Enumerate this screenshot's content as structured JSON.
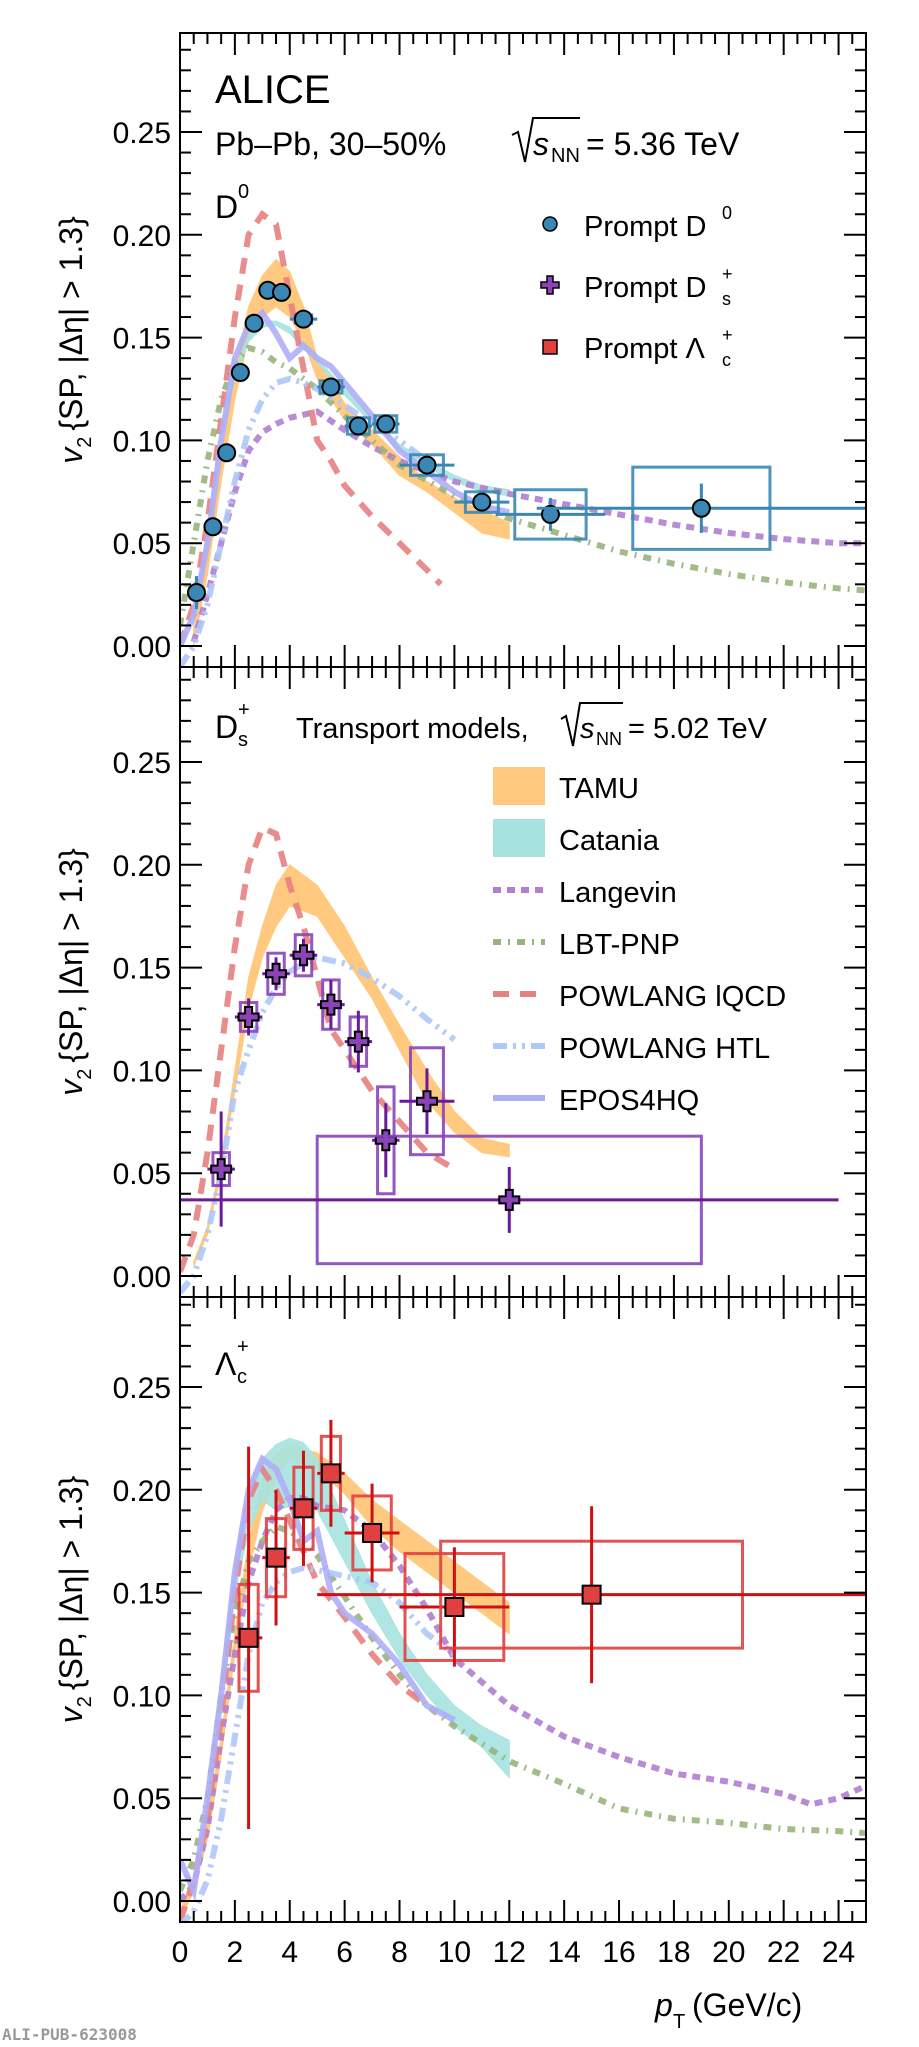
{
  "chart_data": [
    {
      "type": "scatter",
      "panel_label": "D0",
      "experiment": "ALICE",
      "system": "Pb–Pb, 30–50%",
      "energy_label": "= 5.36 TeV",
      "ylabel": "v2 {SP, |Δη| > 1.3}",
      "xlabel": "pT (GeV/c)",
      "xlim": [
        0,
        25
      ],
      "ylim": [
        -0.01,
        0.298
      ],
      "yticks": [
        "0.00",
        "0.05",
        "0.10",
        "0.15",
        "0.20",
        "0.25"
      ],
      "legend": [
        {
          "label": "Prompt D",
          "sup": "0",
          "sub": "",
          "marker": "circle",
          "color": "#3a87b5"
        },
        {
          "label": "Prompt D",
          "sup": "+",
          "sub": "s",
          "marker": "cross",
          "color": "#8a44b8"
        },
        {
          "label": "Prompt Λ",
          "sup": "+",
          "sub": "c",
          "marker": "square",
          "color": "#e04040"
        }
      ],
      "series": [
        {
          "name": "Prompt D0",
          "color": "#3a87b5",
          "marker": "circle",
          "x": [
            0.6,
            1.2,
            1.7,
            2.2,
            2.7,
            3.2,
            3.7,
            4.5,
            5.5,
            6.5,
            7.5,
            9.0,
            11.0,
            13.5,
            19.0
          ],
          "y": [
            0.026,
            0.058,
            0.094,
            0.133,
            0.157,
            0.173,
            0.172,
            0.159,
            0.126,
            0.107,
            0.108,
            0.088,
            0.07,
            0.064,
            0.067
          ],
          "xerr": [
            0,
            0,
            0,
            0,
            0,
            0,
            0,
            0.5,
            0.5,
            0.5,
            0.5,
            1.0,
            1.0,
            2.0,
            6.0
          ],
          "yerr": [
            0.008,
            0.004,
            0.003,
            0.003,
            0.003,
            0.003,
            0.003,
            0.003,
            0.003,
            0.003,
            0.003,
            0.004,
            0.005,
            0.008,
            0.012
          ],
          "sys_dx": [
            0.2,
            0.2,
            0.2,
            0.2,
            0.2,
            0.2,
            0.2,
            0.3,
            0.4,
            0.4,
            0.4,
            0.6,
            0.6,
            1.3,
            2.5
          ],
          "sys_dy": [
            0.003,
            0.002,
            0.002,
            0.002,
            0.002,
            0.002,
            0.002,
            0.002,
            0.003,
            0.004,
            0.004,
            0.005,
            0.005,
            0.012,
            0.02
          ]
        }
      ]
    },
    {
      "type": "scatter",
      "panel_label": "Ds+",
      "models_title": "Transport models,",
      "models_energy": "= 5.02 TeV",
      "ylabel": "v2 {SP, |Δη| > 1.3}",
      "xlim": [
        0,
        25
      ],
      "ylim": [
        -0.01,
        0.296
      ],
      "yticks": [
        "0.00",
        "0.05",
        "0.10",
        "0.15",
        "0.20",
        "0.25"
      ],
      "legend": [
        {
          "label": "TAMU",
          "style": "band",
          "color": "#ffc980"
        },
        {
          "label": "Catania",
          "style": "band",
          "color": "#a6e3e0"
        },
        {
          "label": "Langevin",
          "style": "dotted",
          "color": "#b07fd0"
        },
        {
          "label": "LBT-PNP",
          "style": "dashdot",
          "color": "#98b47c"
        },
        {
          "label": "POWLANG lQCD",
          "style": "dashed",
          "color": "#e78080"
        },
        {
          "label": "POWLANG HTL",
          "style": "dashdotdot",
          "color": "#aec8f8"
        },
        {
          "label": "EPOS4HQ",
          "style": "solid",
          "color": "#aeaef7"
        }
      ],
      "series": [
        {
          "name": "Prompt Ds+",
          "color": "#6a1a9a",
          "marker": "cross",
          "x": [
            1.5,
            2.5,
            3.5,
            4.5,
            5.5,
            6.5,
            7.5,
            9.0,
            12.0
          ],
          "y": [
            0.052,
            0.126,
            0.147,
            0.156,
            0.132,
            0.114,
            0.066,
            0.085,
            0.037
          ],
          "xerr": [
            0.5,
            0.5,
            0.5,
            0.5,
            0.5,
            0.5,
            0.5,
            1.0,
            12.0
          ],
          "yerr": [
            0.028,
            0.009,
            0.008,
            0.008,
            0.012,
            0.015,
            0.018,
            0.016,
            0.016
          ],
          "sys_dx": [
            0.3,
            0.3,
            0.3,
            0.3,
            0.3,
            0.3,
            0.3,
            0.6,
            7.0
          ],
          "sys_dy": [
            0.008,
            0.007,
            0.01,
            0.01,
            0.012,
            0.012,
            0.026,
            0.026,
            0.031
          ]
        }
      ]
    },
    {
      "type": "scatter",
      "panel_label": "Λc+",
      "ylabel": "v2 {SP, |Δη| > 1.3}",
      "xlabel": "pT (GeV/c)",
      "xlim": [
        0,
        25
      ],
      "ylim": [
        -0.01,
        0.296
      ],
      "yticks": [
        "0.00",
        "0.05",
        "0.10",
        "0.15",
        "0.20",
        "0.25"
      ],
      "xticks": [
        "0",
        "2",
        "4",
        "6",
        "8",
        "10",
        "12",
        "14",
        "16",
        "18",
        "20",
        "22",
        "24"
      ],
      "series": [
        {
          "name": "Prompt Λc+",
          "color": "#d01010",
          "marker": "square",
          "x": [
            2.5,
            3.5,
            4.5,
            5.5,
            7.0,
            10.0,
            15.0
          ],
          "y": [
            0.128,
            0.167,
            0.191,
            0.208,
            0.179,
            0.143,
            0.149
          ],
          "xerr": [
            0.5,
            0.5,
            0.5,
            0.5,
            1.0,
            2.0,
            10.0
          ],
          "yerr": [
            0.093,
            0.033,
            0.028,
            0.026,
            0.024,
            0.029,
            0.043
          ],
          "sys_dx": [
            0.35,
            0.35,
            0.35,
            0.35,
            0.7,
            1.8,
            5.5
          ],
          "sys_dy": [
            0.026,
            0.019,
            0.02,
            0.018,
            0.018,
            0.026,
            0.026
          ]
        }
      ]
    }
  ],
  "models": {
    "p1": {
      "TAMU": {
        "x": [
          0.5,
          1,
          1.5,
          2,
          2.5,
          3,
          3.5,
          4,
          4.5,
          5,
          6,
          7,
          8,
          9,
          10,
          11,
          12
        ],
        "lo": [
          0.0,
          0.035,
          0.08,
          0.12,
          0.15,
          0.16,
          0.165,
          0.16,
          0.148,
          0.13,
          0.11,
          0.098,
          0.083,
          0.075,
          0.065,
          0.055,
          0.052
        ],
        "hi": [
          0.015,
          0.05,
          0.09,
          0.135,
          0.165,
          0.18,
          0.188,
          0.182,
          0.165,
          0.14,
          0.118,
          0.105,
          0.092,
          0.08,
          0.072,
          0.066,
          0.06
        ]
      },
      "Catania": {
        "x": [
          0.5,
          1,
          1.5,
          2,
          2.5,
          3,
          3.5,
          4,
          5,
          6,
          7,
          8,
          9,
          10,
          11,
          12
        ],
        "lo": [
          0.01,
          0.05,
          0.1,
          0.13,
          0.148,
          0.155,
          0.156,
          0.152,
          0.138,
          0.122,
          0.108,
          0.095,
          0.087,
          0.08,
          0.075,
          0.073
        ],
        "hi": [
          0.015,
          0.056,
          0.104,
          0.134,
          0.151,
          0.158,
          0.158,
          0.155,
          0.14,
          0.125,
          0.111,
          0.098,
          0.09,
          0.083,
          0.078,
          0.076
        ]
      },
      "Langevin": {
        "x": [
          0.5,
          1,
          1.5,
          2,
          2.5,
          3,
          3.5,
          4,
          5,
          6,
          7,
          8,
          9,
          10,
          12,
          14,
          16,
          18,
          20,
          22,
          24,
          25
        ],
        "y": [
          0.002,
          0.025,
          0.05,
          0.075,
          0.095,
          0.104,
          0.108,
          0.111,
          0.114,
          0.105,
          0.097,
          0.09,
          0.085,
          0.08,
          0.074,
          0.069,
          0.064,
          0.059,
          0.055,
          0.052,
          0.05,
          0.05
        ]
      },
      "LBT-PNP": {
        "x": [
          0,
          0.5,
          1,
          1.5,
          2,
          2.5,
          3,
          3.5,
          4,
          5,
          6,
          7,
          8,
          10,
          12,
          14,
          16,
          18,
          20,
          22,
          24,
          25
        ],
        "y": [
          0.01,
          0.05,
          0.09,
          0.12,
          0.138,
          0.145,
          0.143,
          0.138,
          0.135,
          0.125,
          0.112,
          0.1,
          0.088,
          0.073,
          0.062,
          0.054,
          0.046,
          0.04,
          0.035,
          0.031,
          0.028,
          0.027
        ]
      },
      "POWLANG lQCD": {
        "x": [
          0,
          0.5,
          1,
          1.5,
          2,
          2.5,
          3,
          3.5,
          4,
          4.5,
          5,
          5.5,
          6,
          7,
          8,
          9,
          9.5
        ],
        "y": [
          0.0,
          0.02,
          0.06,
          0.11,
          0.16,
          0.2,
          0.21,
          0.205,
          0.17,
          0.135,
          0.1,
          0.09,
          0.078,
          0.063,
          0.05,
          0.037,
          0.03
        ]
      },
      "POWLANG HTL": {
        "x": [
          0,
          0.5,
          1,
          1.5,
          2,
          2.5,
          3,
          3.5,
          4,
          4.5,
          5,
          6,
          7,
          8,
          9
        ],
        "y": [
          -0.01,
          0.0,
          0.02,
          0.05,
          0.08,
          0.105,
          0.12,
          0.128,
          0.13,
          0.128,
          0.125,
          0.117,
          0.108,
          0.1,
          0.09
        ]
      },
      "EPOS4HQ": {
        "x": [
          0,
          0.5,
          1,
          1.5,
          2,
          2.5,
          3,
          3.5,
          4,
          4.5,
          5,
          5.5,
          6,
          7,
          8,
          9,
          10,
          11,
          12
        ],
        "y": [
          0.0,
          0.015,
          0.05,
          0.1,
          0.14,
          0.156,
          0.162,
          0.152,
          0.14,
          0.146,
          0.14,
          0.136,
          0.128,
          0.112,
          0.095,
          0.085,
          0.075,
          0.068,
          0.065
        ]
      }
    },
    "p2": {
      "TAMU": {
        "x": [
          0.5,
          1,
          1.5,
          2,
          2.5,
          3,
          3.5,
          4,
          5,
          6,
          7,
          8,
          9,
          10,
          11,
          12
        ],
        "lo": [
          0.005,
          0.02,
          0.05,
          0.09,
          0.13,
          0.155,
          0.17,
          0.18,
          0.175,
          0.155,
          0.135,
          0.11,
          0.085,
          0.07,
          0.06,
          0.058
        ],
        "hi": [
          0.007,
          0.024,
          0.056,
          0.1,
          0.145,
          0.17,
          0.19,
          0.2,
          0.19,
          0.17,
          0.145,
          0.122,
          0.1,
          0.08,
          0.067,
          0.064
        ]
      },
      "POWLANG lQCD": {
        "x": [
          0,
          0.5,
          1,
          1.5,
          2,
          2.5,
          3,
          3.5,
          4,
          4.5,
          5,
          5.5,
          6,
          7,
          8,
          9,
          10
        ],
        "y": [
          0.002,
          0.02,
          0.06,
          0.11,
          0.16,
          0.2,
          0.218,
          0.215,
          0.19,
          0.17,
          0.145,
          0.12,
          0.11,
          0.09,
          0.075,
          0.06,
          0.052
        ]
      },
      "POWLANG HTL": {
        "x": [
          0,
          0.5,
          1,
          1.5,
          2,
          2.5,
          3,
          3.5,
          4,
          4.5,
          5,
          6,
          7,
          8,
          9,
          10
        ],
        "y": [
          -0.008,
          0.0,
          0.02,
          0.05,
          0.09,
          0.11,
          0.128,
          0.14,
          0.148,
          0.152,
          0.155,
          0.152,
          0.145,
          0.136,
          0.125,
          0.115
        ]
      }
    },
    "p3": {
      "TAMU": {
        "x": [
          0,
          0.5,
          1,
          1.5,
          2,
          2.5,
          3,
          3.5,
          4,
          5,
          6,
          7,
          8,
          9,
          10,
          11,
          12
        ],
        "lo": [
          -0.01,
          0.005,
          0.03,
          0.07,
          0.12,
          0.16,
          0.19,
          0.205,
          0.215,
          0.21,
          0.198,
          0.182,
          0.17,
          0.16,
          0.15,
          0.14,
          0.13
        ],
        "hi": [
          -0.005,
          0.012,
          0.04,
          0.08,
          0.13,
          0.175,
          0.205,
          0.218,
          0.222,
          0.218,
          0.208,
          0.195,
          0.185,
          0.175,
          0.165,
          0.155,
          0.145
        ]
      },
      "Catania": {
        "x": [
          1,
          1.5,
          2,
          2.5,
          3,
          3.5,
          4,
          4.5,
          5,
          6,
          7,
          8,
          9,
          10,
          11,
          12
        ],
        "lo": [
          0.045,
          0.1,
          0.15,
          0.18,
          0.195,
          0.19,
          0.192,
          0.195,
          0.19,
          0.165,
          0.14,
          0.118,
          0.1,
          0.085,
          0.075,
          0.06
        ],
        "hi": [
          0.05,
          0.11,
          0.165,
          0.2,
          0.215,
          0.222,
          0.225,
          0.223,
          0.215,
          0.185,
          0.155,
          0.13,
          0.11,
          0.095,
          0.085,
          0.078
        ]
      },
      "Langevin": {
        "x": [
          0,
          0.5,
          1,
          1.5,
          2,
          2.5,
          3,
          3.5,
          4,
          4.5,
          5,
          6,
          7,
          8,
          9,
          10,
          12,
          14,
          16,
          18,
          20,
          22,
          23,
          24,
          25
        ],
        "y": [
          0.0,
          0.008,
          0.035,
          0.08,
          0.12,
          0.155,
          0.175,
          0.19,
          0.196,
          0.196,
          0.192,
          0.19,
          0.18,
          0.163,
          0.142,
          0.118,
          0.095,
          0.08,
          0.07,
          0.062,
          0.058,
          0.052,
          0.047,
          0.05,
          0.056
        ]
      },
      "LBT-PNP": {
        "x": [
          0,
          0.5,
          1,
          1.5,
          2,
          2.5,
          3,
          3.5,
          4,
          4.5,
          5,
          6,
          7,
          8,
          9,
          10,
          12,
          14,
          16,
          18,
          20,
          22,
          24,
          25
        ],
        "y": [
          0.005,
          0.02,
          0.05,
          0.1,
          0.14,
          0.165,
          0.175,
          0.182,
          0.18,
          0.175,
          0.168,
          0.148,
          0.128,
          0.11,
          0.095,
          0.085,
          0.068,
          0.057,
          0.045,
          0.04,
          0.038,
          0.035,
          0.034,
          0.033
        ]
      },
      "POWLANG lQCD": {
        "x": [
          0,
          0.5,
          1,
          1.5,
          2,
          2.5,
          3,
          3.5,
          4,
          4.5,
          5,
          6,
          7,
          8,
          9
        ],
        "y": [
          -0.01,
          0.01,
          0.04,
          0.09,
          0.15,
          0.195,
          0.21,
          0.2,
          0.185,
          0.17,
          0.155,
          0.138,
          0.12,
          0.105,
          0.095
        ]
      },
      "POWLANG HTL": {
        "x": [
          0,
          0.5,
          1,
          1.5,
          2,
          2.5,
          3,
          3.5,
          4,
          4.5,
          5,
          6,
          7,
          8,
          9,
          10
        ],
        "y": [
          -0.012,
          -0.005,
          0.01,
          0.04,
          0.08,
          0.12,
          0.145,
          0.155,
          0.16,
          0.162,
          0.161,
          0.158,
          0.155,
          0.145,
          0.13,
          0.12
        ]
      },
      "EPOS4HQ": {
        "x": [
          0,
          0.5,
          1,
          1.5,
          2,
          2.5,
          3,
          3.5,
          4,
          4.5,
          5,
          5.5,
          6,
          7,
          8,
          9,
          10
        ],
        "y": [
          0.02,
          0.005,
          0.05,
          0.1,
          0.16,
          0.2,
          0.215,
          0.21,
          0.195,
          0.175,
          0.18,
          0.15,
          0.14,
          0.13,
          0.115,
          0.095,
          0.088
        ]
      }
    }
  },
  "labels": {
    "alice": "ALICE",
    "system": "Pb–Pb, 30–50%",
    "sqrt_s": "s",
    "nn": "NN",
    "energy": "= 5.36 TeV",
    "d0": "D",
    "d0_sup": "0",
    "ds": "D",
    "ds_sup": "+",
    "ds_sub": "s",
    "lc": "Λ",
    "lc_sup": "+",
    "lc_sub": "c",
    "models_title": "Transport models,",
    "models_energy": "= 5.02 TeV",
    "ylabel_v": "v",
    "ylabel_sub": "2",
    "ylabel_rest": "{SP, |Δη| > 1.3}",
    "xlabel_p": "p",
    "xlabel_sub": "T",
    "xlabel_rest": "(GeV/c)",
    "watermark": "ALI-PUB-623008"
  }
}
